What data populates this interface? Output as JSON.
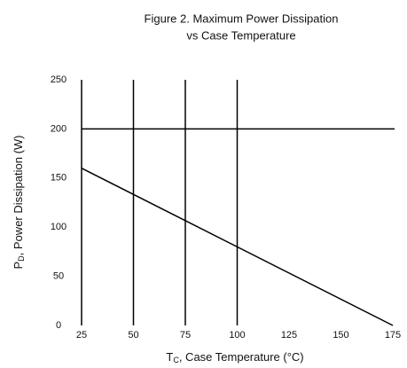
{
  "chart_data": {
    "type": "line",
    "title": "Figure 2.   Maximum Power Dissipation",
    "subtitle": "vs Case Temperature",
    "xlabel": {
      "symbol": "T",
      "subscript": "C",
      "text": ", Case Temperature (°C)"
    },
    "ylabel": {
      "symbol": "P",
      "subscript": "D",
      "text": ", Power Dissipation (W)"
    },
    "x": [
      25,
      175
    ],
    "series": [
      {
        "name": "PD",
        "color": "#000000",
        "values": [
          160,
          0
        ]
      }
    ],
    "xlim": [
      25,
      175
    ],
    "ylim": [
      0,
      250
    ],
    "xticks": [
      25,
      50,
      75,
      100,
      125,
      150,
      175
    ],
    "yticks": [
      0,
      50,
      100,
      150,
      200,
      250
    ],
    "xgrid": [
      50,
      75,
      100
    ],
    "ygrid": [
      200
    ]
  }
}
